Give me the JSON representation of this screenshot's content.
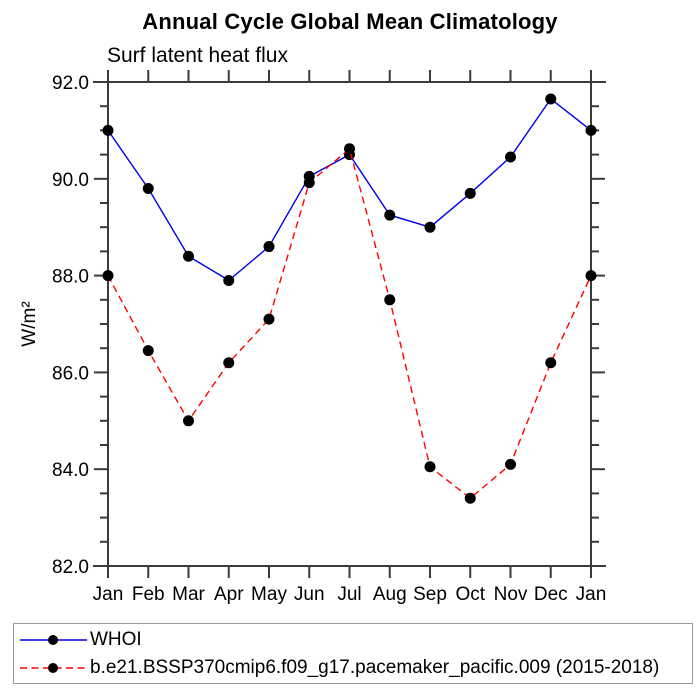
{
  "header": {
    "title": "Annual Cycle Global Mean Climatology",
    "subtitle": "Surf latent heat flux"
  },
  "chart_data": {
    "type": "line",
    "title": "Annual Cycle Global Mean Climatology",
    "subtitle": "Surf latent heat flux",
    "xlabel": "",
    "ylabel": "W/m²",
    "categories": [
      "Jan",
      "Feb",
      "Mar",
      "Apr",
      "May",
      "Jun",
      "Jul",
      "Aug",
      "Sep",
      "Oct",
      "Nov",
      "Dec",
      "Jan"
    ],
    "ylim": [
      82.0,
      92.0
    ],
    "y_major_tick_step": 2.0,
    "y_minor_tick_step": 0.5,
    "y_tick_labels": [
      "82.0",
      "84.0",
      "86.0",
      "88.0",
      "90.0",
      "92.0"
    ],
    "grid": false,
    "legend_position": "bottom",
    "marker": {
      "shape": "circle",
      "color": "#000000",
      "radius": 5.5
    },
    "axis_color": "#3a3a3a",
    "series": [
      {
        "name": "WHOI",
        "color": "#0000ee",
        "line_style": "solid",
        "values": [
          91.0,
          89.8,
          88.4,
          87.9,
          88.6,
          90.05,
          90.5,
          89.25,
          89.0,
          89.7,
          90.45,
          91.65,
          91.0
        ]
      },
      {
        "name": "b.e21.BSSP370cmip6.f09_g17.pacemaker_pacific.009 (2015-2018)",
        "color": "#ff0000",
        "line_style": "dashed",
        "values": [
          88.0,
          86.45,
          85.0,
          86.2,
          87.1,
          89.92,
          90.62,
          87.5,
          84.05,
          83.4,
          84.1,
          86.2,
          88.0
        ]
      }
    ]
  }
}
